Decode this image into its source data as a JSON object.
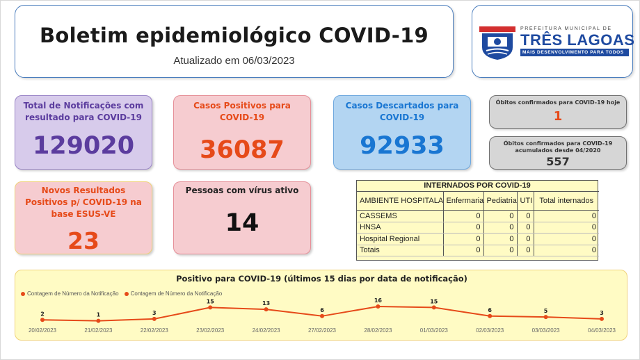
{
  "header": {
    "title": "Boletim epidemiológico COVID-19",
    "subtitle": "Atualizado em 06/03/2023"
  },
  "logo": {
    "line1": "PREFEITURA MUNICIPAL DE",
    "line2": "TRÊS LAGOAS",
    "line3": "MAIS DESENVOLVIMENTO PARA TODOS",
    "colors": {
      "blue": "#1e4aa0",
      "red": "#d32f2f"
    }
  },
  "cards": {
    "notificacoes": {
      "label": "Total de Notificações com resultado para COVID-19",
      "value": "129020"
    },
    "positivos": {
      "label": "Casos Positivos para COVID-19",
      "value": "36087"
    },
    "descartados": {
      "label": "Casos Descartados para COVID-19",
      "value": "92933"
    },
    "obitos_hoje": {
      "label": "Óbitos confirmados para COVID-19 hoje",
      "value": "1"
    },
    "obitos_acum": {
      "label": "Óbitos confirmados para COVID-19 acumulados desde 04/2020",
      "value": "557"
    },
    "novos": {
      "label": "Novos Resultados Positivos p/ COVID-19 na base ESUS-VE",
      "value": "23"
    },
    "ativos": {
      "label": "Pessoas com vírus ativo",
      "value": "14"
    }
  },
  "internados": {
    "title": "INTERNADOS POR COVID-19",
    "columns": [
      "AMBIENTE HOSPITALAR",
      "Enfermaria",
      "Pediatria",
      "UTI",
      "Total internados"
    ],
    "rows": [
      [
        "CASSEMS",
        "0",
        "0",
        "0",
        "0"
      ],
      [
        "HNSA",
        "0",
        "0",
        "0",
        "0"
      ],
      [
        "Hospital Regional",
        "0",
        "0",
        "0",
        "0"
      ],
      [
        "Totais",
        "0",
        "0",
        "0",
        "0"
      ]
    ]
  },
  "chart_data": {
    "type": "line",
    "title": "Positivo para COVID-19 (últimos 15 dias por data de notificação)",
    "legend": [
      "Contagem de Número da Notificação",
      "Contagem de Número da Notificação"
    ],
    "legend_position": "top-left",
    "categories": [
      "20/02/2023",
      "21/02/2023",
      "22/02/2023",
      "23/02/2023",
      "24/02/2023",
      "27/02/2023",
      "28/02/2023",
      "01/03/2023",
      "02/03/2023",
      "03/03/2023",
      "04/03/2023"
    ],
    "series": [
      {
        "name": "Contagem de Número da Notificação",
        "values": [
          2,
          1,
          3,
          15,
          13,
          6,
          16,
          15,
          6,
          5,
          3
        ]
      }
    ],
    "ylim": [
      0,
      16
    ],
    "grid": false,
    "color": "#e64a19"
  }
}
